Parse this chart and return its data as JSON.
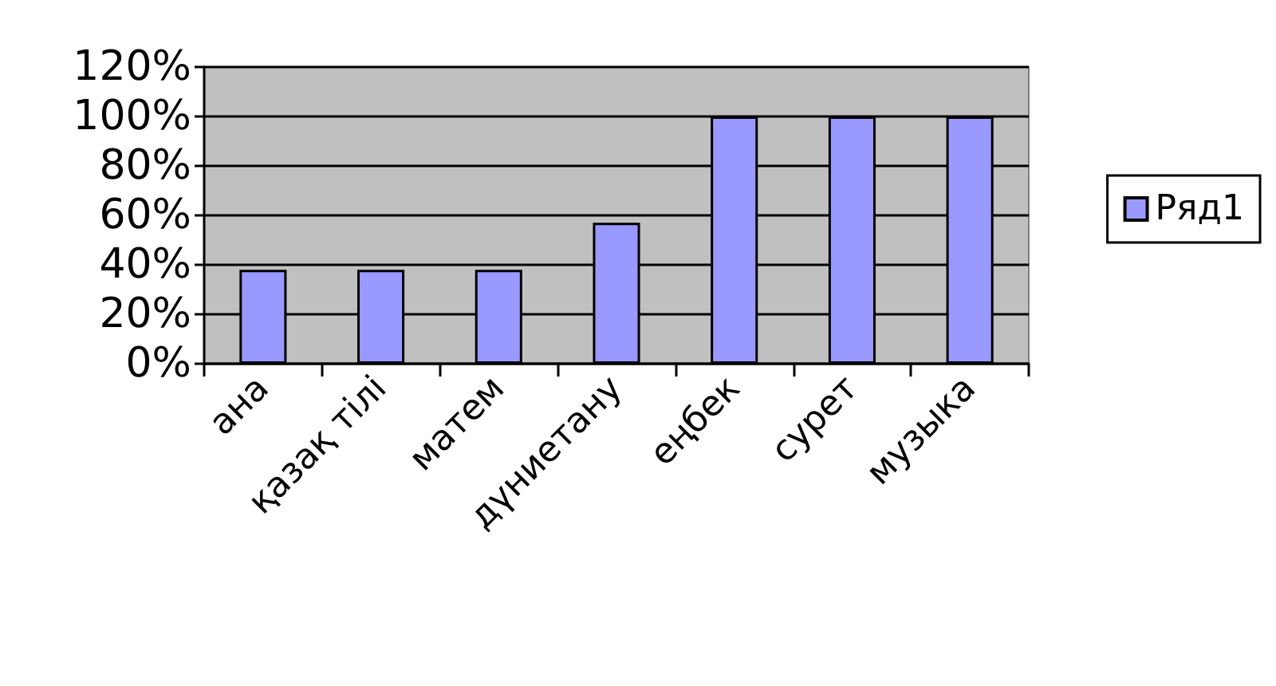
{
  "chart_data": {
    "type": "bar",
    "categories": [
      "ана",
      "қазақ тілі",
      "матем",
      "дүниетану",
      "еңбек",
      "сурет",
      "музыка"
    ],
    "series": [
      {
        "name": "Ряд1",
        "color": "#9999ff",
        "values": [
          38,
          38,
          38,
          57,
          100,
          100,
          100
        ]
      }
    ],
    "ylim": [
      0,
      120
    ],
    "yticks": [
      {
        "value": 0,
        "label": "0%"
      },
      {
        "value": 20,
        "label": "20%"
      },
      {
        "value": 40,
        "label": "40%"
      },
      {
        "value": 60,
        "label": "60%"
      },
      {
        "value": 80,
        "label": "80%"
      },
      {
        "value": 100,
        "label": "100%"
      },
      {
        "value": 120,
        "label": "120%"
      }
    ],
    "grid": "y",
    "legend": "right"
  }
}
